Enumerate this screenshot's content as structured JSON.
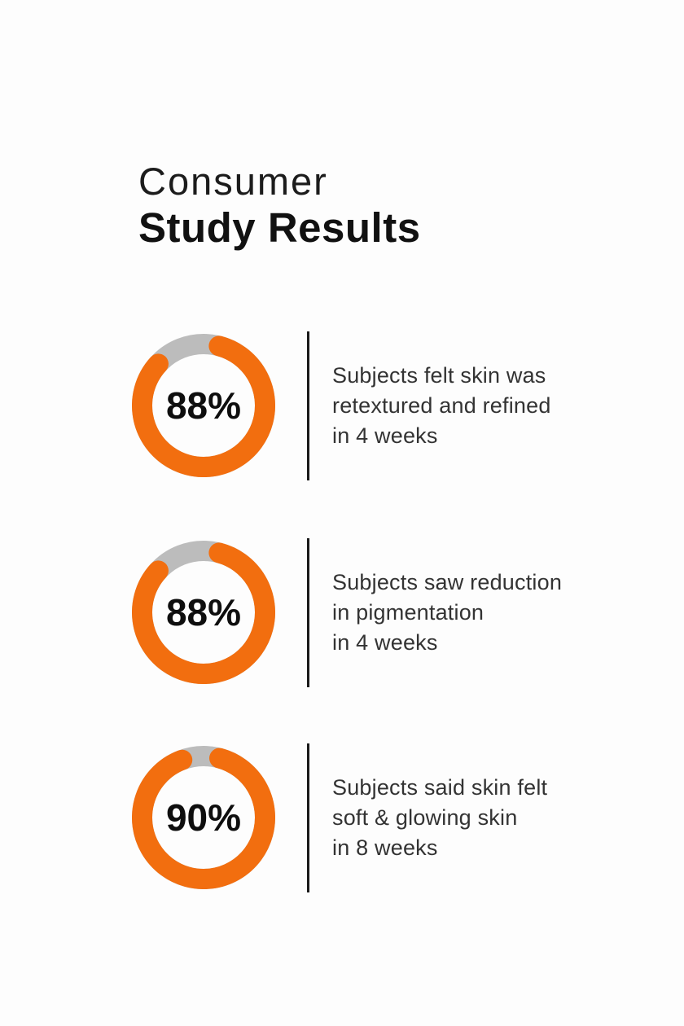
{
  "page": {
    "background": "#FDFDFD"
  },
  "header": {
    "title_line1": "Consumer",
    "title_line2": "Study Results"
  },
  "stats": [
    {
      "percent_label": "88%",
      "lines": [
        "Subjects felt skin was",
        "retextured and refined",
        "in 4 weeks"
      ]
    },
    {
      "percent_label": "88%",
      "lines": [
        "Subjects saw reduction",
        "in pigmentation",
        "in 4 weeks"
      ]
    },
    {
      "percent_label": "90%",
      "lines": [
        "Subjects said skin felt",
        "soft & glowing skin",
        "in 8 weeks"
      ]
    }
  ],
  "chart_data": {
    "type": "pie",
    "subtype": "donut-progress-rings",
    "title": "Consumer Study Results",
    "legend_position": "right-of-each-donut",
    "items": [
      {
        "value": 88,
        "unit": "%",
        "label": "Subjects felt skin was retextured and refined in 4 weeks",
        "gap_from_deg": -38,
        "gap_to_deg": 5
      },
      {
        "value": 88,
        "unit": "%",
        "label": "Subjects saw reduction in pigmentation in 4 weeks",
        "gap_from_deg": -38,
        "gap_to_deg": 5
      },
      {
        "value": 90,
        "unit": "%",
        "label": "Subjects said skin felt soft & glowing skin in 8 weeks",
        "gap_from_deg": -11,
        "gap_to_deg": 5.5
      }
    ],
    "colors": {
      "ring": "#F26E0F",
      "track": "#BCBCBC",
      "percent_text": "#0E0E0E",
      "divider": "#1A1A1A"
    }
  }
}
